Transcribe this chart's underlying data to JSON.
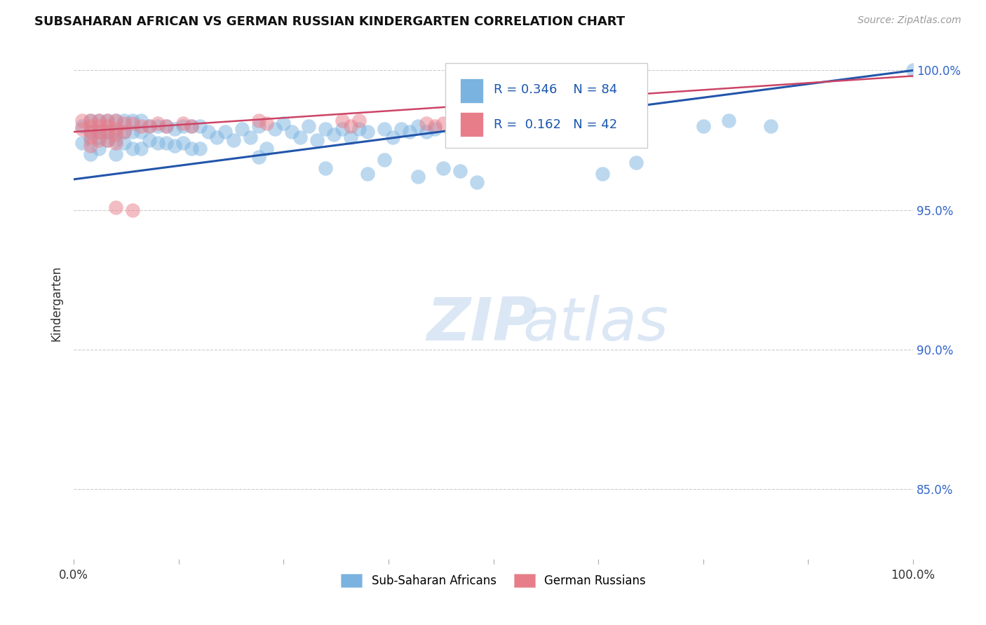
{
  "title": "SUBSAHARAN AFRICAN VS GERMAN RUSSIAN KINDERGARTEN CORRELATION CHART",
  "source": "Source: ZipAtlas.com",
  "ylabel": "Kindergarten",
  "ytick_labels": [
    "100.0%",
    "95.0%",
    "90.0%",
    "85.0%"
  ],
  "ytick_values": [
    1.0,
    0.95,
    0.9,
    0.85
  ],
  "legend_blue_r": "R = 0.346",
  "legend_blue_n": "N = 84",
  "legend_pink_r": "R =  0.162",
  "legend_pink_n": "N = 42",
  "blue_color": "#7ab3e0",
  "pink_color": "#e87d8a",
  "blue_line_color": "#2255aa",
  "pink_line_color": "#cc4466",
  "watermark_zip": "ZIP",
  "watermark_atlas": "atlas",
  "blue_scatter_x": [
    0.01,
    0.01,
    0.02,
    0.02,
    0.02,
    0.02,
    0.03,
    0.03,
    0.03,
    0.03,
    0.04,
    0.04,
    0.04,
    0.05,
    0.05,
    0.05,
    0.05,
    0.06,
    0.06,
    0.06,
    0.07,
    0.07,
    0.07,
    0.08,
    0.08,
    0.08,
    0.09,
    0.09,
    0.1,
    0.1,
    0.11,
    0.11,
    0.12,
    0.12,
    0.13,
    0.13,
    0.14,
    0.14,
    0.15,
    0.15,
    0.16,
    0.17,
    0.18,
    0.19,
    0.2,
    0.21,
    0.22,
    0.23,
    0.24,
    0.25,
    0.26,
    0.27,
    0.28,
    0.29,
    0.3,
    0.31,
    0.32,
    0.33,
    0.34,
    0.35,
    0.37,
    0.38,
    0.39,
    0.4,
    0.41,
    0.42,
    0.43,
    0.45,
    0.47,
    0.49,
    0.22,
    0.3,
    0.35,
    0.37,
    0.41,
    0.44,
    0.46,
    0.48,
    0.63,
    0.67,
    1.0,
    0.75,
    0.78,
    0.83
  ],
  "blue_scatter_y": [
    0.98,
    0.974,
    0.982,
    0.978,
    0.975,
    0.97,
    0.982,
    0.978,
    0.976,
    0.972,
    0.982,
    0.978,
    0.975,
    0.982,
    0.978,
    0.975,
    0.97,
    0.982,
    0.978,
    0.974,
    0.982,
    0.978,
    0.972,
    0.982,
    0.978,
    0.972,
    0.98,
    0.975,
    0.98,
    0.974,
    0.98,
    0.974,
    0.979,
    0.973,
    0.98,
    0.974,
    0.98,
    0.972,
    0.98,
    0.972,
    0.978,
    0.976,
    0.978,
    0.975,
    0.979,
    0.976,
    0.98,
    0.972,
    0.979,
    0.981,
    0.978,
    0.976,
    0.98,
    0.975,
    0.979,
    0.977,
    0.979,
    0.976,
    0.979,
    0.978,
    0.979,
    0.976,
    0.979,
    0.978,
    0.98,
    0.978,
    0.979,
    0.978,
    0.979,
    0.979,
    0.969,
    0.965,
    0.963,
    0.968,
    0.962,
    0.965,
    0.964,
    0.96,
    0.963,
    0.967,
    1.0,
    0.98,
    0.982,
    0.98
  ],
  "pink_scatter_x": [
    0.01,
    0.01,
    0.02,
    0.02,
    0.02,
    0.02,
    0.02,
    0.03,
    0.03,
    0.03,
    0.03,
    0.04,
    0.04,
    0.04,
    0.04,
    0.05,
    0.05,
    0.05,
    0.05,
    0.06,
    0.06,
    0.07,
    0.08,
    0.09,
    0.1,
    0.11,
    0.13,
    0.14,
    0.22,
    0.23,
    0.32,
    0.33,
    0.34,
    0.42,
    0.43,
    0.44,
    0.52,
    0.53,
    0.6,
    0.62,
    0.05,
    0.07
  ],
  "pink_scatter_y": [
    0.982,
    0.979,
    0.982,
    0.98,
    0.978,
    0.976,
    0.973,
    0.982,
    0.98,
    0.978,
    0.975,
    0.982,
    0.98,
    0.978,
    0.975,
    0.982,
    0.979,
    0.977,
    0.974,
    0.981,
    0.978,
    0.981,
    0.98,
    0.98,
    0.981,
    0.98,
    0.981,
    0.98,
    0.982,
    0.981,
    0.982,
    0.98,
    0.982,
    0.981,
    0.98,
    0.981,
    0.981,
    0.98,
    0.981,
    0.98,
    0.951,
    0.95
  ],
  "blue_trend_y_start": 0.961,
  "blue_trend_y_end": 1.0,
  "pink_trend_y_start": 0.978,
  "pink_trend_y_end": 0.998,
  "xmin": 0.0,
  "xmax": 1.0,
  "ymin": 0.825,
  "ymax": 1.008,
  "background_color": "#ffffff",
  "grid_color": "#cccccc"
}
